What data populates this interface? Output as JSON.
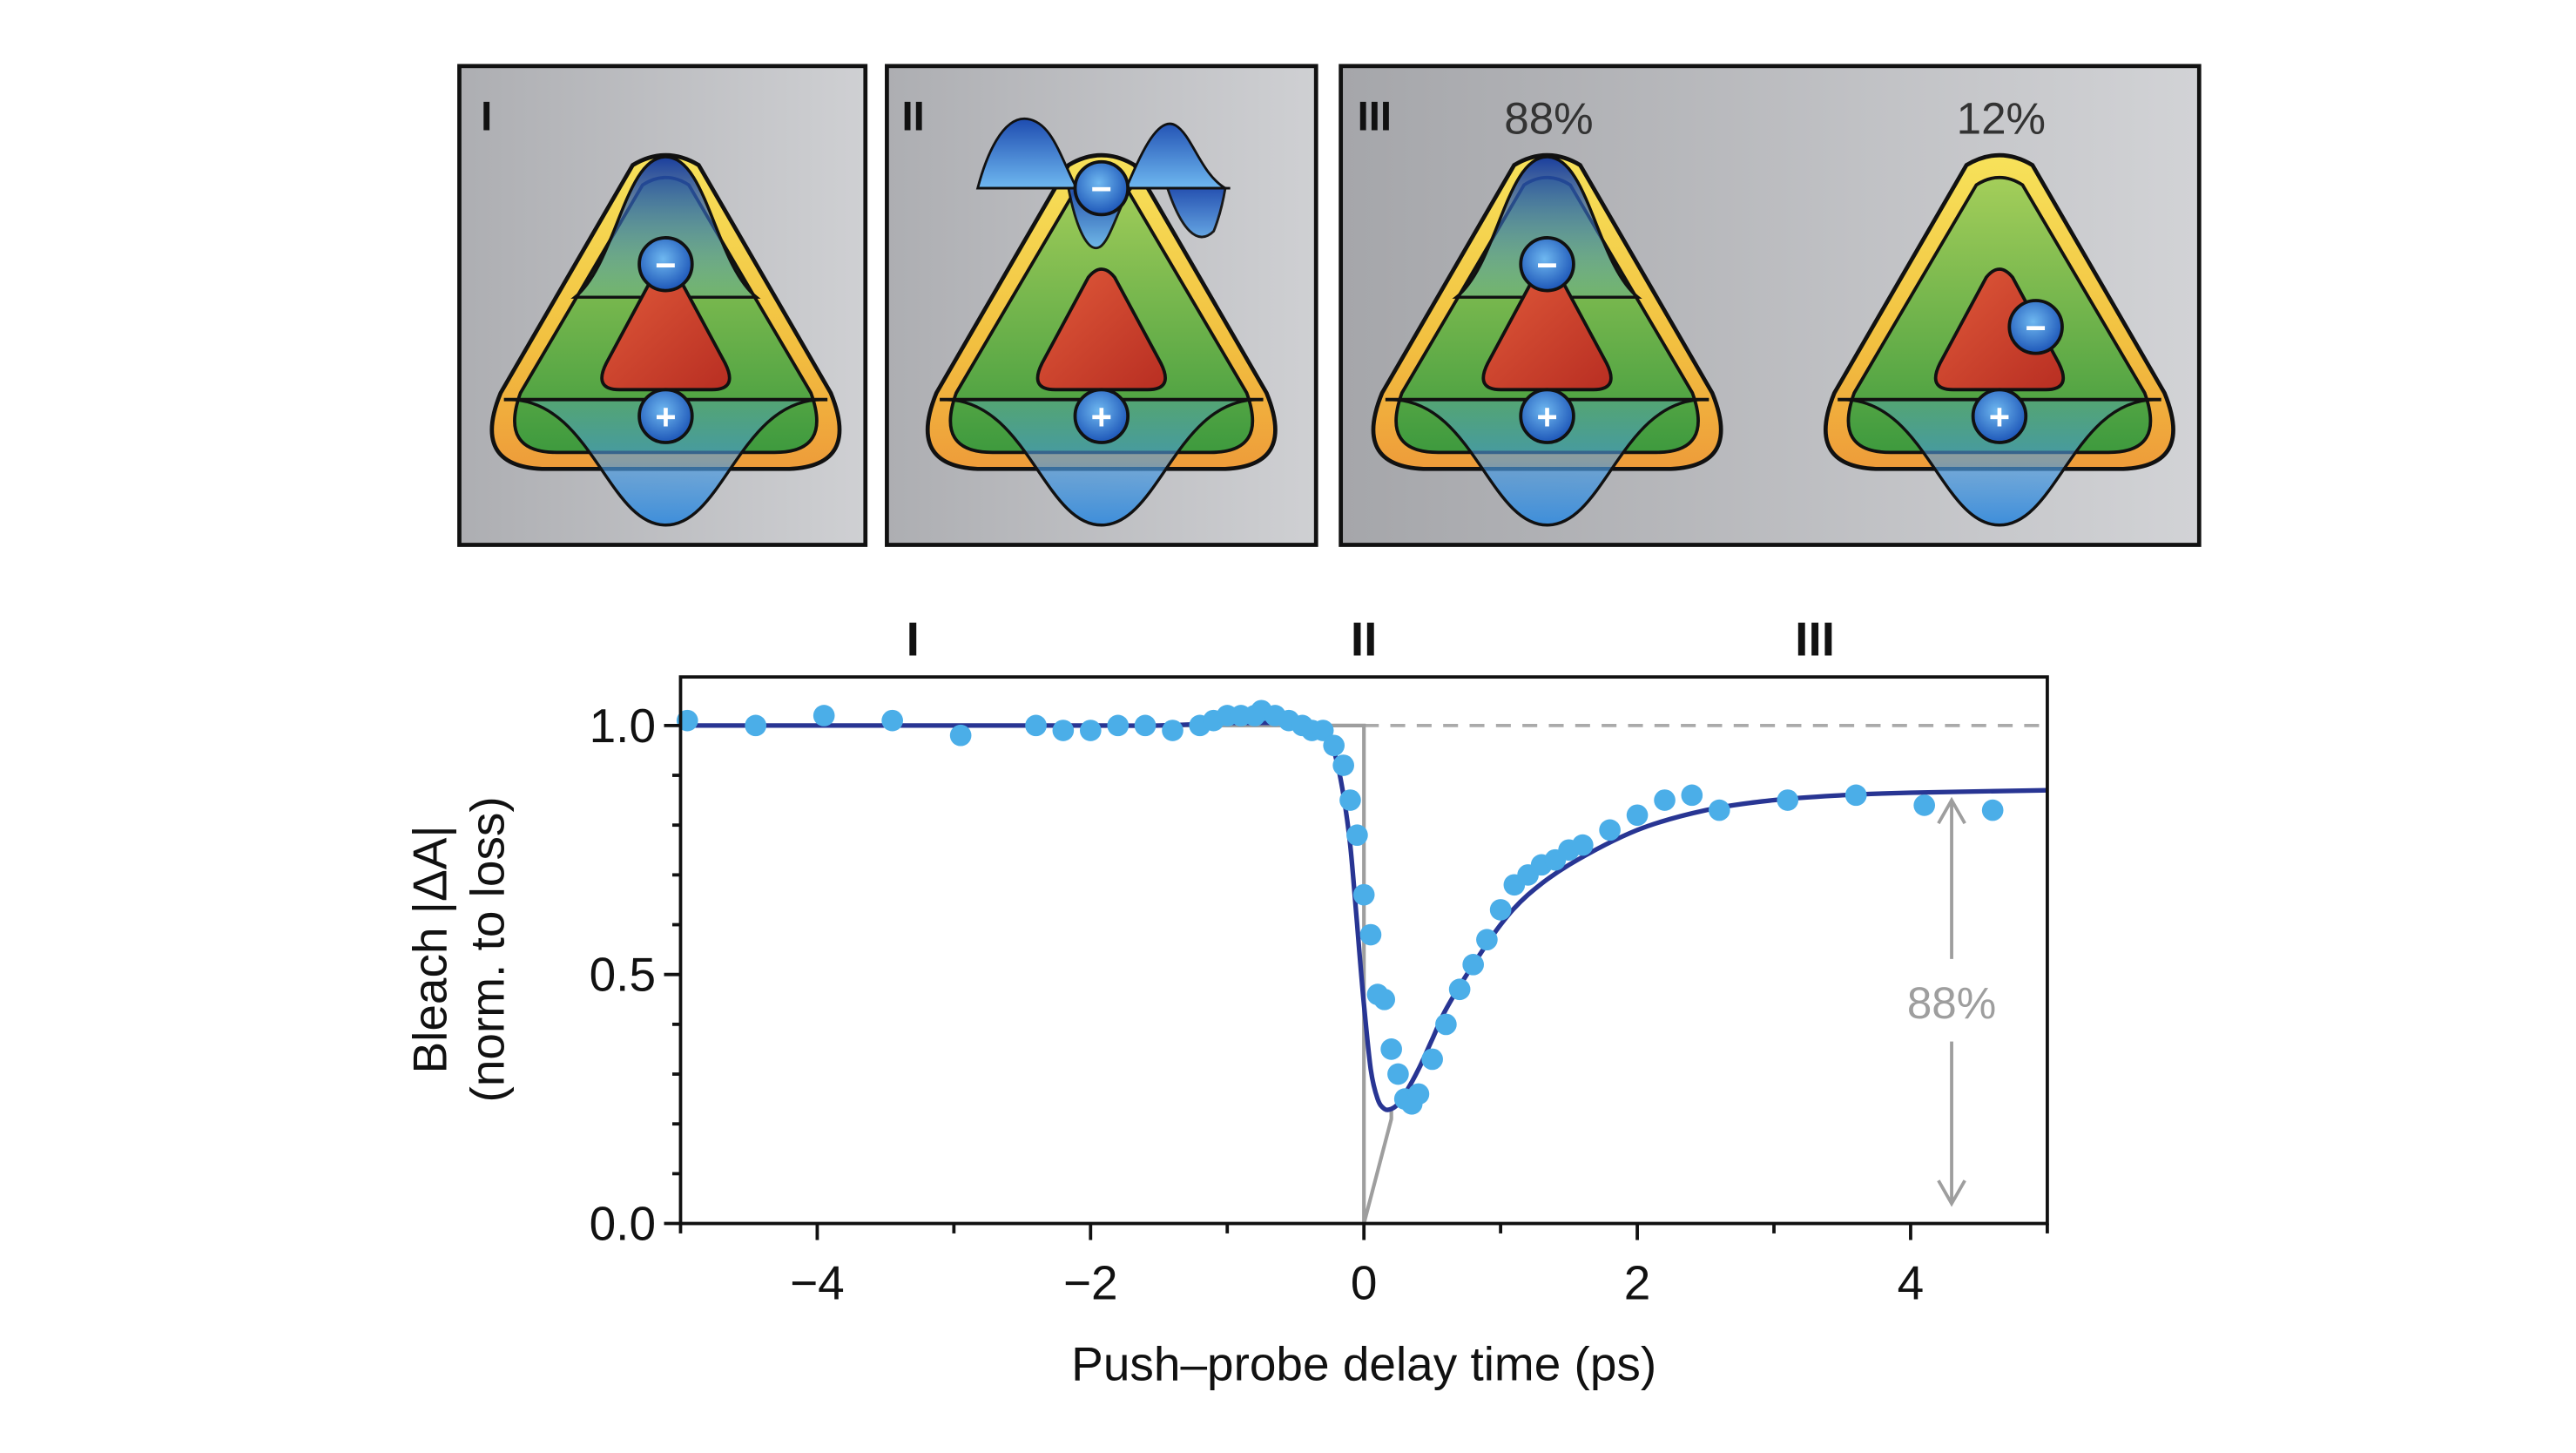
{
  "panels": [
    {
      "label": "I"
    },
    {
      "label": "II"
    },
    {
      "label": "III",
      "percent_left": "88%",
      "percent_right": "12%"
    }
  ],
  "charge_labels": {
    "minus": "−",
    "plus": "+"
  },
  "chart_data": {
    "type": "scatter",
    "title": "",
    "xlabel": "Push–probe delay time (ps)",
    "ylabel_line1": "Bleach |ΔA|",
    "ylabel_line2": "(norm. to loss)",
    "xlim": [
      -5,
      5
    ],
    "ylim": [
      0,
      1.1
    ],
    "xticks": [
      -4,
      -2,
      0,
      2,
      4
    ],
    "xtick_labels": [
      "−4",
      "−2",
      "0",
      "2",
      "4"
    ],
    "yticks": [
      0.0,
      0.5,
      1.0
    ],
    "ytick_labels": [
      "0.0",
      "0.5",
      "1.0"
    ],
    "region_labels": [
      {
        "text": "I",
        "x": -3.3
      },
      {
        "text": "II",
        "x": 0.0
      },
      {
        "text": "III",
        "x": 3.3
      }
    ],
    "reference_level": 1.0,
    "annotation": {
      "text": "88%",
      "x": 4.3,
      "from": 0.04,
      "to": 0.85
    },
    "series": [
      {
        "kind": "points",
        "color": "#4BAEE8",
        "x": [
          -4.95,
          -4.45,
          -3.95,
          -3.45,
          -2.95,
          -2.4,
          -2.2,
          -2.0,
          -1.8,
          -1.6,
          -1.4,
          -1.2,
          -1.1,
          -1.0,
          -0.9,
          -0.8,
          -0.75,
          -0.65,
          -0.55,
          -0.45,
          -0.38,
          -0.3,
          -0.22,
          -0.15,
          -0.1,
          -0.05,
          0.0,
          0.05,
          0.1,
          0.15,
          0.2,
          0.25,
          0.3,
          0.35,
          0.4,
          0.5,
          0.6,
          0.7,
          0.8,
          0.9,
          1.0,
          1.1,
          1.2,
          1.3,
          1.4,
          1.5,
          1.6,
          1.8,
          2.0,
          2.2,
          2.4,
          2.6,
          3.1,
          3.6,
          4.1,
          4.6
        ],
        "y": [
          1.01,
          1.0,
          1.02,
          1.01,
          0.98,
          1.0,
          0.99,
          0.99,
          1.0,
          1.0,
          0.99,
          1.0,
          1.01,
          1.02,
          1.02,
          1.02,
          1.03,
          1.02,
          1.01,
          1.0,
          0.99,
          0.99,
          0.96,
          0.92,
          0.85,
          0.78,
          0.66,
          0.58,
          0.46,
          0.45,
          0.35,
          0.3,
          0.25,
          0.24,
          0.26,
          0.33,
          0.4,
          0.47,
          0.52,
          0.57,
          0.63,
          0.68,
          0.7,
          0.72,
          0.73,
          0.75,
          0.76,
          0.79,
          0.82,
          0.85,
          0.86,
          0.83,
          0.85,
          0.86,
          0.84,
          0.83
        ]
      },
      {
        "kind": "fit-curve",
        "color": "#283593",
        "x": [
          -5,
          -4,
          -3,
          -2,
          -1.5,
          -1.0,
          -0.8,
          -0.6,
          -0.4,
          -0.3,
          -0.25,
          -0.2,
          -0.15,
          -0.1,
          -0.05,
          0.0,
          0.05,
          0.1,
          0.15,
          0.2,
          0.25,
          0.3,
          0.4,
          0.5,
          0.6,
          0.8,
          1.0,
          1.2,
          1.5,
          2.0,
          2.5,
          3.0,
          3.5,
          4.0,
          5.0
        ],
        "y": [
          1.0,
          1.0,
          1.0,
          1.0,
          1.0,
          1.005,
          1.005,
          1.005,
          1.0,
          0.99,
          0.97,
          0.93,
          0.86,
          0.76,
          0.6,
          0.44,
          0.31,
          0.25,
          0.23,
          0.23,
          0.24,
          0.26,
          0.31,
          0.37,
          0.43,
          0.52,
          0.6,
          0.66,
          0.72,
          0.79,
          0.83,
          0.85,
          0.86,
          0.865,
          0.87
        ]
      },
      {
        "kind": "instrument-response",
        "color": "#9E9E9E",
        "x": [
          -5,
          0,
          0,
          0.2,
          0.2
        ],
        "y": [
          1.0,
          1.0,
          0.0,
          0.21,
          0.23
        ]
      }
    ]
  }
}
